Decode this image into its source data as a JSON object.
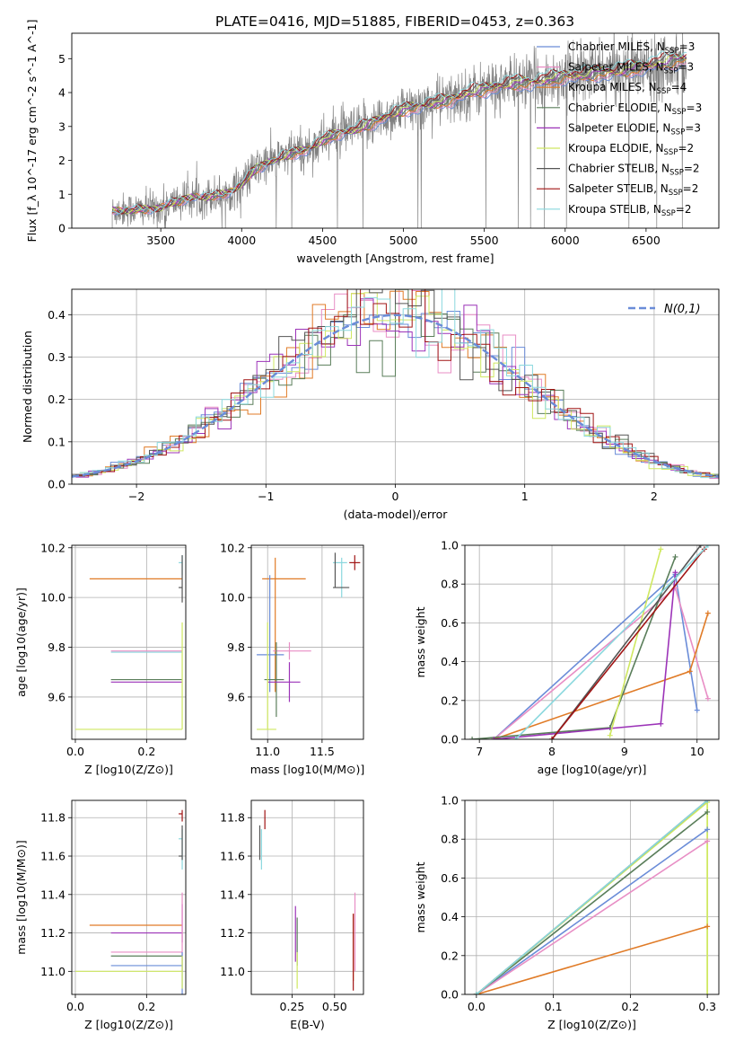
{
  "figure_title": "PLATE=0416, MJD=51885, FIBERID=0453, z=0.363",
  "colors": {
    "chabrier_miles": "#6a8cd8",
    "salpeter_miles": "#e88ec5",
    "kroupa_miles": "#e07b27",
    "chabrier_elodie": "#5a7e5a",
    "salpeter_elodie": "#9c33b8",
    "kroupa_elodie": "#cfe860",
    "chabrier_stelib": "#555555",
    "salpeter_stelib": "#a01414",
    "kroupa_stelib": "#8ad8de",
    "data_spectrum": "#808080",
    "normal_curve": "#6a8cd8",
    "grid": "#b0b0b0"
  },
  "chart_data": [
    {
      "id": "spectrum",
      "type": "line",
      "title": "PLATE=0416, MJD=51885, FIBERID=0453, z=0.363",
      "xlabel": "wavelength [Angstrom, rest frame]",
      "ylabel": "Flux [f_λ 10^-17 erg cm^-2 s^-1 A^-1]",
      "xlim": [
        2950,
        6950
      ],
      "ylim": [
        0,
        5.75
      ],
      "xticks": [
        "3500",
        "4000",
        "4500",
        "5000",
        "5500",
        "6000",
        "6500"
      ],
      "yticks": [
        "0",
        "1",
        "2",
        "3",
        "4",
        "5"
      ],
      "grid": false,
      "legend_position": "top-right",
      "legend": [
        {
          "key": "chabrier_miles",
          "label": "Chabrier MILES, N_SSP=3"
        },
        {
          "key": "salpeter_miles",
          "label": "Salpeter MILES, N_SSP=3"
        },
        {
          "key": "kroupa_miles",
          "label": "Kroupa MILES, N_SSP=4"
        },
        {
          "key": "chabrier_elodie",
          "label": "Chabrier ELODIE, N_SSP=3"
        },
        {
          "key": "salpeter_elodie",
          "label": "Salpeter ELODIE, N_SSP=3"
        },
        {
          "key": "kroupa_elodie",
          "label": "Kroupa ELODIE, N_SSP=2"
        },
        {
          "key": "chabrier_stelib",
          "label": "Chabrier STELIB, N_SSP=2"
        },
        {
          "key": "salpeter_stelib",
          "label": "Salpeter STELIB, N_SSP=2"
        },
        {
          "key": "kroupa_stelib",
          "label": "Kroupa STELIB, N_SSP=2"
        }
      ],
      "model_continuum": {
        "x": [
          3200,
          3300,
          3400,
          3500,
          3600,
          3700,
          3800,
          3900,
          4000,
          4100,
          4200,
          4300,
          4400,
          4500,
          4600,
          4700,
          4800,
          4900,
          5000,
          5100,
          5200,
          5300,
          5400,
          5500,
          5600,
          5700,
          5800,
          5900,
          6000,
          6100,
          6200,
          6300,
          6400,
          6500,
          6600,
          6750
        ],
        "y": [
          0.5,
          0.55,
          0.55,
          0.6,
          0.8,
          0.9,
          0.95,
          1.0,
          1.3,
          1.8,
          2.0,
          2.2,
          2.3,
          2.6,
          2.8,
          2.9,
          3.1,
          3.3,
          3.5,
          3.6,
          3.7,
          3.8,
          4.0,
          4.1,
          4.2,
          4.3,
          4.3,
          4.4,
          4.5,
          4.5,
          4.6,
          4.6,
          4.7,
          4.8,
          4.9,
          5.0
        ]
      },
      "data_start": 3200,
      "data_end": 6750
    },
    {
      "id": "residuals",
      "type": "line",
      "xlabel": "(data-model)/error",
      "ylabel": "Normed distribution",
      "xlim": [
        -2.5,
        2.5
      ],
      "ylim": [
        0,
        0.46
      ],
      "xticks": [
        "−2",
        "−1",
        "0",
        "1",
        "2"
      ],
      "yticks": [
        "0.0",
        "0.1",
        "0.2",
        "0.3",
        "0.4"
      ],
      "grid": true,
      "legend_position": "top-right",
      "legend_label": "N(0,1)",
      "normal": {
        "mu": 0,
        "sigma": 1
      },
      "bin_width": 0.1
    },
    {
      "id": "age_vs_Z",
      "type": "scatter",
      "xlabel": "Z [log10(Z/Z⊙)]",
      "ylabel": "age [log10(age/yr)]",
      "xlim": [
        -0.01,
        0.31
      ],
      "ylim": [
        9.43,
        10.21
      ],
      "xticks": [
        "0.0",
        "0.2"
      ],
      "yticks": [
        "9.6",
        "9.8",
        "10.0",
        "10.2"
      ],
      "grid": true,
      "errorbars": [
        {
          "key": "kroupa_miles",
          "x": 0.3,
          "y": 10.075,
          "xlo": 0.04,
          "xhi": 0.3,
          "ylo": 10.075,
          "yhi": 10.075
        },
        {
          "key": "salpeter_miles",
          "x": 0.3,
          "y": 9.785,
          "xlo": 0.1,
          "xhi": 0.3,
          "ylo": 9.785,
          "yhi": 9.785
        },
        {
          "key": "kroupa_stelib",
          "x": 0.3,
          "y": 9.78,
          "xlo": 0.1,
          "xhi": 0.3,
          "ylo": 9.78,
          "yhi": 9.78
        },
        {
          "key": "chabrier_elodie",
          "x": 0.3,
          "y": 9.67,
          "xlo": 0.1,
          "xhi": 0.3,
          "ylo": 9.67,
          "yhi": 9.67
        },
        {
          "key": "salpeter_elodie",
          "x": 0.3,
          "y": 9.66,
          "xlo": 0.1,
          "xhi": 0.3,
          "ylo": 9.66,
          "yhi": 9.66
        },
        {
          "key": "kroupa_elodie",
          "x": 0.3,
          "y": 9.47,
          "xlo": 0.0,
          "xhi": 0.3,
          "ylo": 9.47,
          "yhi": 9.9
        },
        {
          "key": "kroupa_stelib",
          "x": 0.3,
          "y": 10.14,
          "xlo": 0.29,
          "xhi": 0.3,
          "ylo": 10.09,
          "yhi": 10.17
        },
        {
          "key": "chabrier_stelib",
          "x": 0.3,
          "y": 10.04,
          "xlo": 0.29,
          "xhi": 0.3,
          "ylo": 9.98,
          "yhi": 10.17
        }
      ]
    },
    {
      "id": "age_vs_mass",
      "type": "scatter",
      "xlabel": "mass [log10(M/M⊙)]",
      "ylabel": "",
      "xlim": [
        10.85,
        11.88
      ],
      "ylim": [
        9.43,
        10.21
      ],
      "xticks": [
        "11.0",
        "11.5"
      ],
      "yticks": [
        "9.6",
        "9.8",
        "10.0",
        "10.2"
      ],
      "grid": true,
      "errorbars": [
        {
          "key": "kroupa_miles",
          "x": 11.07,
          "y": 10.075,
          "xlo": 10.95,
          "xhi": 11.35,
          "ylo": 9.62,
          "yhi": 10.16
        },
        {
          "key": "salpeter_miles",
          "x": 11.2,
          "y": 9.785,
          "xlo": 11.05,
          "xhi": 11.4,
          "ylo": 9.75,
          "yhi": 9.82
        },
        {
          "key": "chabrier_miles",
          "x": 11.02,
          "y": 9.77,
          "xlo": 10.9,
          "xhi": 11.15,
          "ylo": 9.62,
          "yhi": 10.09
        },
        {
          "key": "chabrier_elodie",
          "x": 11.08,
          "y": 9.67,
          "xlo": 10.97,
          "xhi": 11.15,
          "ylo": 9.52,
          "yhi": 9.82
        },
        {
          "key": "salpeter_elodie",
          "x": 11.2,
          "y": 9.66,
          "xlo": 11.0,
          "xhi": 11.3,
          "ylo": 9.58,
          "yhi": 9.74
        },
        {
          "key": "kroupa_elodie",
          "x": 11.0,
          "y": 9.47,
          "xlo": 10.9,
          "xhi": 11.08,
          "ylo": 9.47,
          "yhi": 9.9
        },
        {
          "key": "salpeter_stelib",
          "x": 11.8,
          "y": 10.14,
          "xlo": 11.75,
          "xhi": 11.85,
          "ylo": 10.11,
          "yhi": 10.17
        },
        {
          "key": "kroupa_stelib",
          "x": 11.68,
          "y": 10.14,
          "xlo": 11.6,
          "xhi": 11.73,
          "ylo": 10.0,
          "yhi": 10.16
        },
        {
          "key": "chabrier_stelib",
          "x": 11.62,
          "y": 10.04,
          "xlo": 11.6,
          "xhi": 11.75,
          "ylo": 10.04,
          "yhi": 10.18
        }
      ]
    },
    {
      "id": "mass_weight_vs_age",
      "type": "line",
      "xlabel": "age [log10(age/yr)]",
      "ylabel": "mass weight",
      "xlim": [
        6.8,
        10.3
      ],
      "ylim": [
        0,
        1
      ],
      "xticks": [
        "7",
        "8",
        "9",
        "10"
      ],
      "yticks": [
        "0.0",
        "0.2",
        "0.4",
        "0.6",
        "0.8",
        "1.0"
      ],
      "grid": true,
      "series": [
        {
          "key": "chabrier_miles",
          "x": [
            7.2,
            9.7,
            10.0
          ],
          "y": [
            0.0,
            0.85,
            0.15
          ]
        },
        {
          "key": "salpeter_miles",
          "x": [
            7.2,
            9.7,
            10.15
          ],
          "y": [
            0.0,
            0.78,
            0.21
          ]
        },
        {
          "key": "kroupa_miles",
          "x": [
            7.2,
            9.9,
            10.15
          ],
          "y": [
            0.0,
            0.35,
            0.65
          ]
        },
        {
          "key": "chabrier_elodie",
          "x": [
            6.9,
            8.8,
            9.7
          ],
          "y": [
            0.0,
            0.06,
            0.94
          ]
        },
        {
          "key": "salpeter_elodie",
          "x": [
            7.2,
            9.5,
            9.7
          ],
          "y": [
            0.0,
            0.08,
            0.86
          ]
        },
        {
          "key": "kroupa_elodie",
          "x": [
            8.8,
            9.5
          ],
          "y": [
            0.02,
            0.98
          ]
        },
        {
          "key": "chabrier_stelib",
          "x": [
            8.0,
            10.05
          ],
          "y": [
            0.0,
            1.0
          ]
        },
        {
          "key": "salpeter_stelib",
          "x": [
            8.0,
            10.1
          ],
          "y": [
            0.0,
            0.98
          ]
        },
        {
          "key": "kroupa_stelib",
          "x": [
            7.5,
            10.15
          ],
          "y": [
            0.0,
            1.0
          ]
        }
      ]
    },
    {
      "id": "mass_vs_Z",
      "type": "scatter",
      "xlabel": "Z [log10(Z/Z⊙)]",
      "ylabel": "mass [log10(M/M⊙)]",
      "xlim": [
        -0.01,
        0.31
      ],
      "ylim": [
        10.88,
        11.89
      ],
      "xticks": [
        "0.0",
        "0.2"
      ],
      "yticks": [
        "11.0",
        "11.2",
        "11.4",
        "11.6",
        "11.8"
      ],
      "grid": true,
      "errorbars": [
        {
          "key": "kroupa_miles",
          "x": 0.3,
          "y": 11.24,
          "xlo": 0.04,
          "xhi": 0.3,
          "ylo": 11.24,
          "yhi": 11.24
        },
        {
          "key": "salpeter_elodie",
          "x": 0.3,
          "y": 11.2,
          "xlo": 0.1,
          "xhi": 0.3,
          "ylo": 11.15,
          "yhi": 11.35
        },
        {
          "key": "salpeter_miles",
          "x": 0.3,
          "y": 11.1,
          "xlo": 0.1,
          "xhi": 0.3,
          "ylo": 11.0,
          "yhi": 11.41
        },
        {
          "key": "chabrier_elodie",
          "x": 0.3,
          "y": 11.08,
          "xlo": 0.1,
          "xhi": 0.3,
          "ylo": 11.08,
          "yhi": 11.08
        },
        {
          "key": "chabrier_miles",
          "x": 0.3,
          "y": 11.03,
          "xlo": 0.1,
          "xhi": 0.3,
          "ylo": 10.88,
          "yhi": 11.1
        },
        {
          "key": "kroupa_elodie",
          "x": 0.3,
          "y": 11.0,
          "xlo": 0.0,
          "xhi": 0.3,
          "ylo": 10.91,
          "yhi": 11.08
        },
        {
          "key": "salpeter_stelib",
          "x": 0.3,
          "y": 11.82,
          "xlo": 0.29,
          "xhi": 0.3,
          "ylo": 11.78,
          "yhi": 11.84
        },
        {
          "key": "kroupa_stelib",
          "x": 0.3,
          "y": 11.69,
          "xlo": 0.29,
          "xhi": 0.3,
          "ylo": 11.53,
          "yhi": 11.74
        },
        {
          "key": "chabrier_stelib",
          "x": 0.3,
          "y": 11.6,
          "xlo": 0.29,
          "xhi": 0.3,
          "ylo": 11.58,
          "yhi": 11.76
        }
      ]
    },
    {
      "id": "mass_vs_ebv",
      "type": "scatter",
      "xlabel": "E(B-V)",
      "ylabel": "",
      "xlim": [
        0.01,
        0.67
      ],
      "ylim": [
        10.88,
        11.89
      ],
      "xticks": [
        "0.25",
        "0.50"
      ],
      "yticks": [
        "11.0",
        "11.2",
        "11.4",
        "11.6",
        "11.8"
      ],
      "grid": true,
      "errorbars": [
        {
          "key": "salpeter_stelib",
          "x": 0.09,
          "y": 11.82,
          "xlo": 0.09,
          "xhi": 0.09,
          "ylo": 11.74,
          "yhi": 11.84
        },
        {
          "key": "chabrier_stelib",
          "x": 0.06,
          "y": 11.64,
          "xlo": 0.06,
          "xhi": 0.06,
          "ylo": 11.58,
          "yhi": 11.76
        },
        {
          "key": "kroupa_stelib",
          "x": 0.07,
          "y": 11.6,
          "xlo": 0.07,
          "xhi": 0.07,
          "ylo": 11.53,
          "yhi": 11.74
        },
        {
          "key": "salpeter_elodie",
          "x": 0.27,
          "y": 11.2,
          "xlo": 0.27,
          "xhi": 0.27,
          "ylo": 11.05,
          "yhi": 11.34
        },
        {
          "key": "chabrier_elodie",
          "x": 0.28,
          "y": 11.1,
          "xlo": 0.28,
          "xhi": 0.28,
          "ylo": 11.03,
          "yhi": 11.28
        },
        {
          "key": "kroupa_elodie",
          "x": 0.28,
          "y": 11.0,
          "xlo": 0.28,
          "xhi": 0.28,
          "ylo": 10.91,
          "yhi": 11.1
        },
        {
          "key": "kroupa_miles",
          "x": 0.61,
          "y": 11.1,
          "xlo": 0.61,
          "xhi": 0.61,
          "ylo": 10.95,
          "yhi": 11.3
        },
        {
          "key": "salpeter_miles",
          "x": 0.62,
          "y": 11.2,
          "xlo": 0.62,
          "xhi": 0.62,
          "ylo": 11.0,
          "yhi": 11.41
        },
        {
          "key": "salpeter_stelib",
          "x": 0.61,
          "y": 11.05,
          "xlo": 0.61,
          "xhi": 0.61,
          "ylo": 10.9,
          "yhi": 11.3
        }
      ]
    },
    {
      "id": "mass_weight_vs_Z",
      "type": "line",
      "xlabel": "Z [log10(Z/Z⊙)]",
      "ylabel": "mass weight",
      "xlim": [
        -0.015,
        0.315
      ],
      "ylim": [
        0,
        1
      ],
      "xticks": [
        "0.0",
        "0.1",
        "0.2",
        "0.3"
      ],
      "yticks": [
        "0.0",
        "0.2",
        "0.4",
        "0.6",
        "0.8",
        "1.0"
      ],
      "grid": true,
      "series": [
        {
          "key": "chabrier_miles",
          "x": [
            0.0,
            0.3
          ],
          "y": [
            0.0,
            0.85
          ]
        },
        {
          "key": "salpeter_miles",
          "x": [
            0.0,
            0.3
          ],
          "y": [
            0.0,
            0.79
          ]
        },
        {
          "key": "kroupa_miles",
          "x": [
            0.0,
            0.3
          ],
          "y": [
            0.0,
            0.35
          ]
        },
        {
          "key": "chabrier_elodie",
          "x": [
            0.0,
            0.3
          ],
          "y": [
            0.0,
            0.94
          ]
        },
        {
          "key": "kroupa_elodie",
          "x": [
            0.0,
            0.3
          ],
          "y": [
            0.0,
            0.99
          ]
        },
        {
          "key": "chabrier_stelib",
          "x": [
            0.0,
            0.3
          ],
          "y": [
            0.0,
            1.0
          ]
        },
        {
          "key": "kroupa_stelib",
          "x": [
            0.0,
            0.3
          ],
          "y": [
            0.0,
            1.0
          ]
        }
      ],
      "vertical_at": 0.3
    }
  ]
}
